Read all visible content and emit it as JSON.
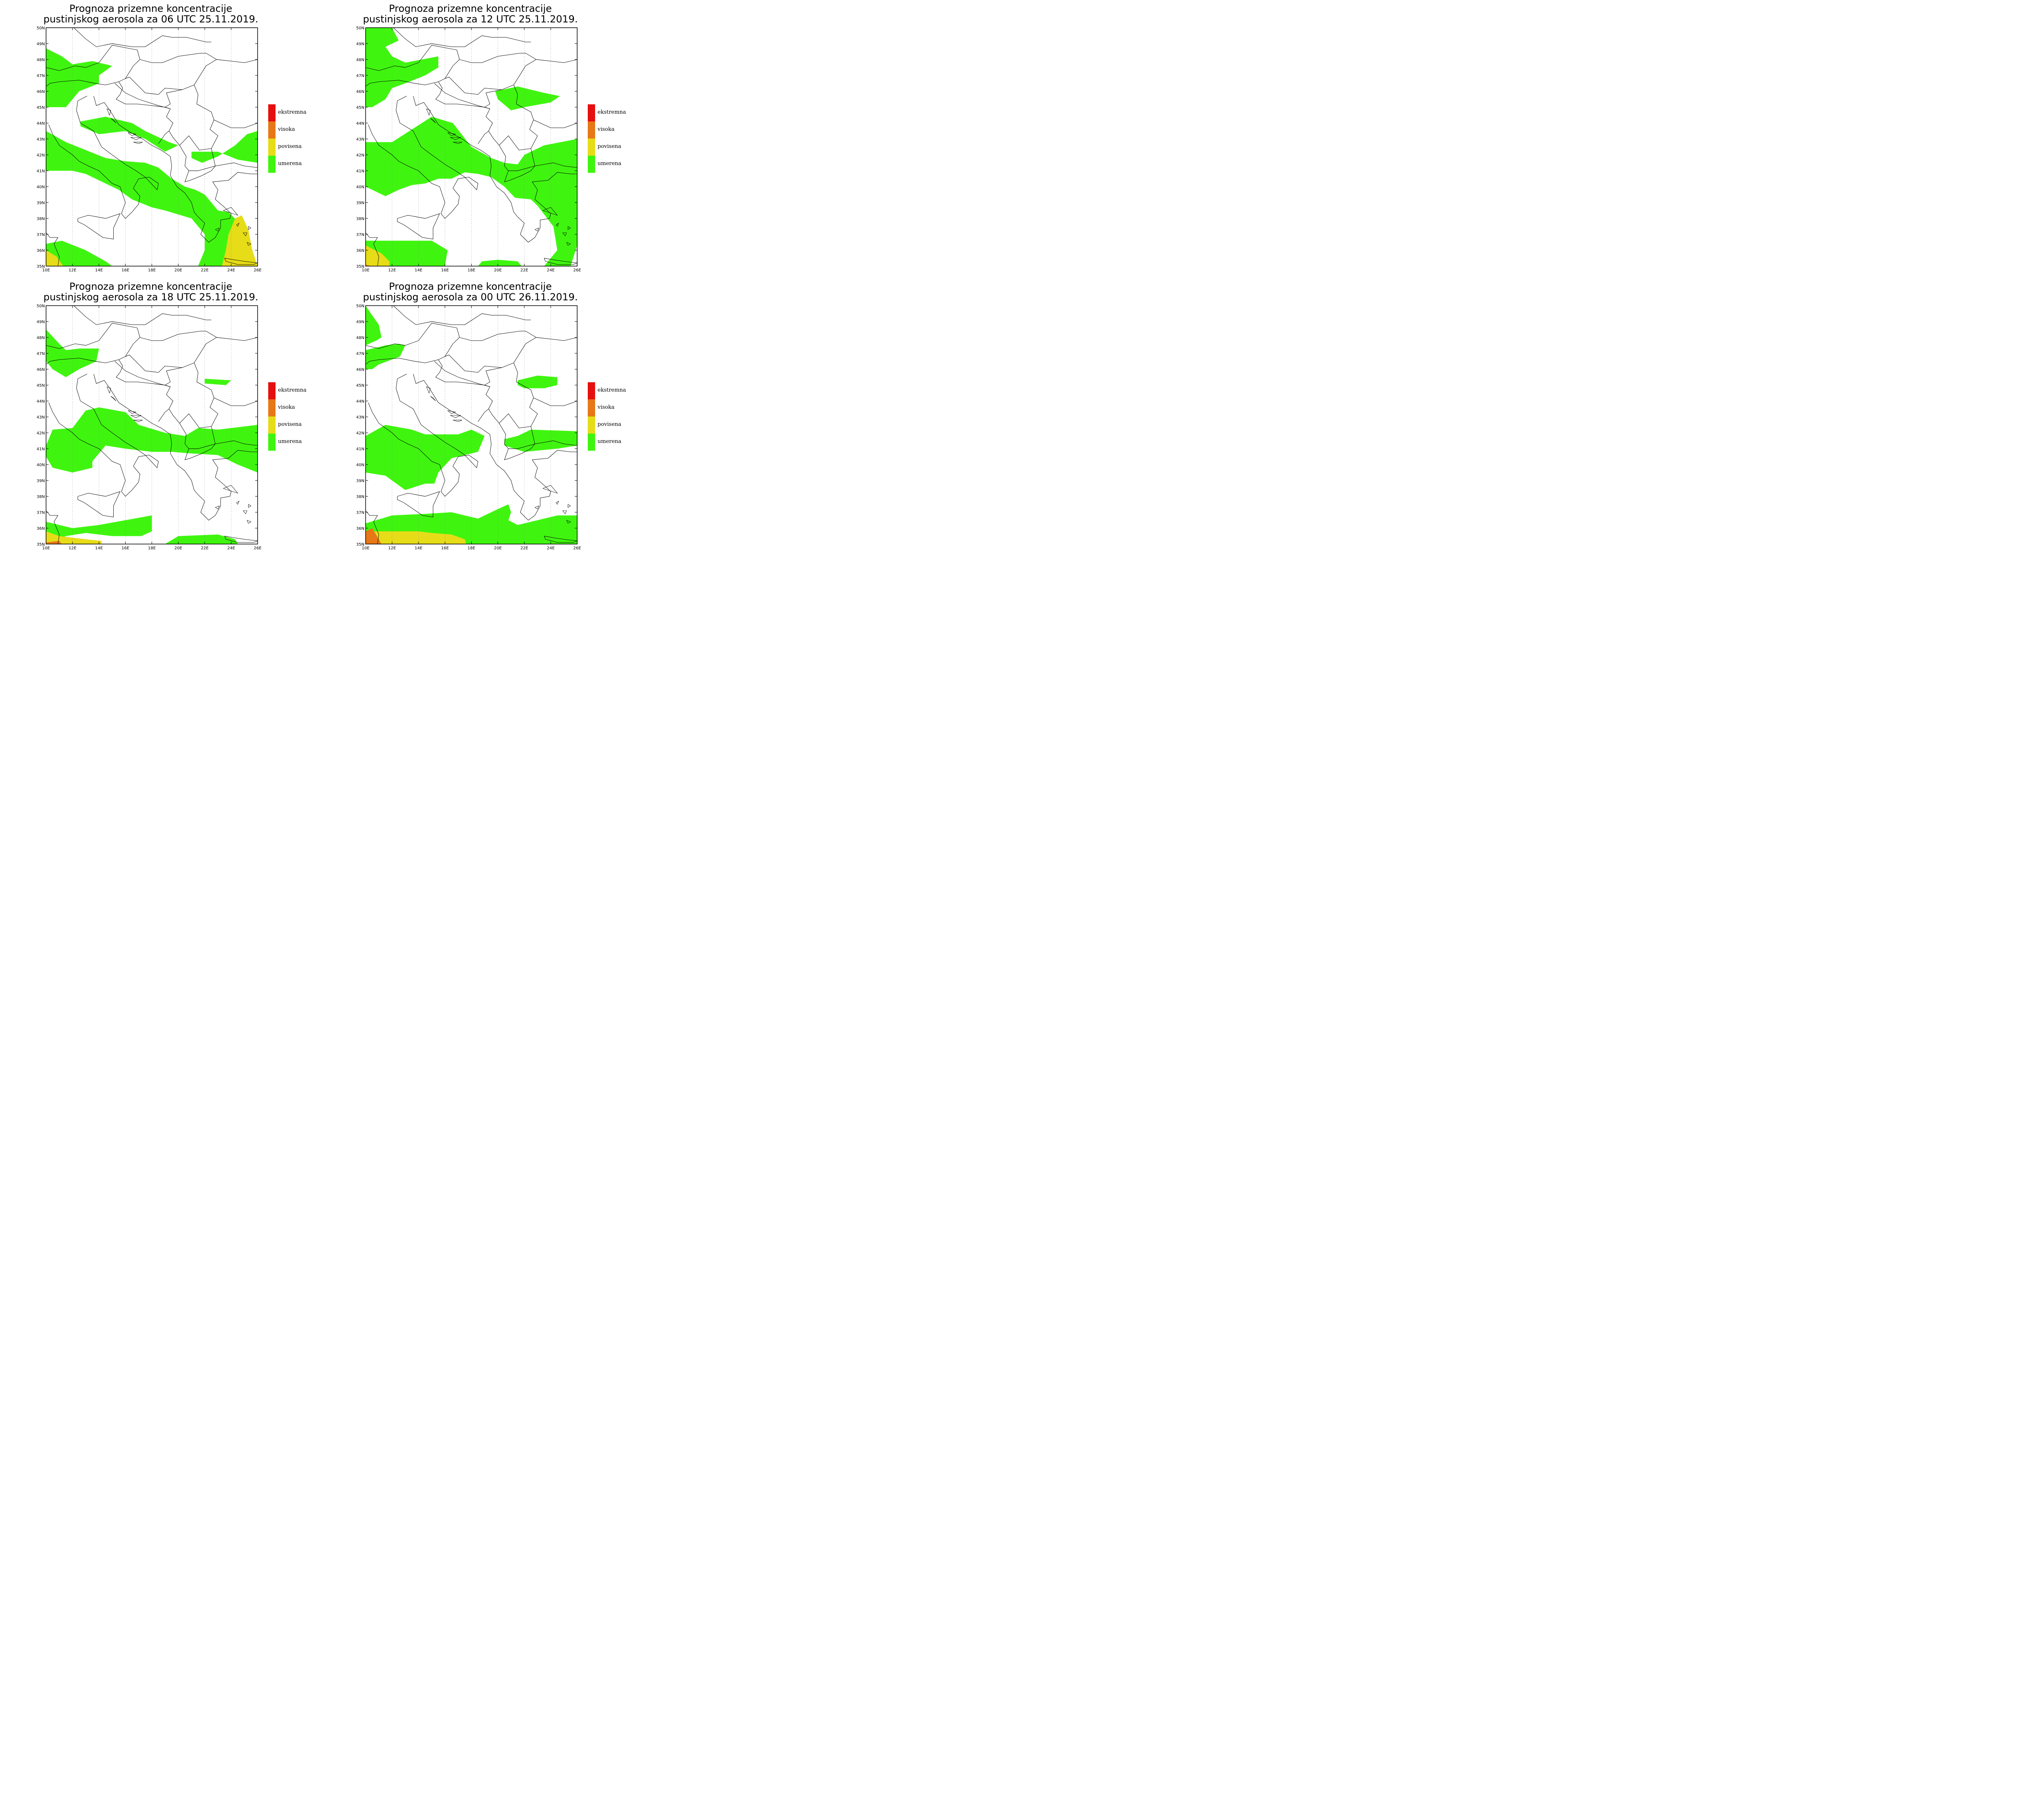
{
  "colors": {
    "ekstremna": "#e60f0f",
    "visoka": "#e67817",
    "povisena": "#e6dc17",
    "umerena": "#3ff50f",
    "coast": "#000000",
    "grid": "#777777"
  },
  "axes": {
    "lat_labels": [
      "50N",
      "49N",
      "48N",
      "47N",
      "46N",
      "45N",
      "44N",
      "43N",
      "42N",
      "41N",
      "40N",
      "39N",
      "38N",
      "37N",
      "36N",
      "35N"
    ],
    "lon_labels": [
      "10E",
      "12E",
      "14E",
      "16E",
      "18E",
      "20E",
      "22E",
      "24E",
      "26E"
    ]
  },
  "legend": [
    {
      "key": "ekstremna",
      "label": "ekstremna"
    },
    {
      "key": "visoka",
      "label": "visoka"
    },
    {
      "key": "povisena",
      "label": "povisena"
    },
    {
      "key": "umerena",
      "label": "umerena"
    }
  ],
  "panels": [
    {
      "title_line1": "Prognoza prizemne koncentracije",
      "title_line2": "pustinjskog aerosola za 06 UTC 25.11.2019."
    },
    {
      "title_line1": "Prognoza prizemne koncentracije",
      "title_line2": "pustinjskog aerosola za 12 UTC 25.11.2019."
    },
    {
      "title_line1": "Prognoza prizemne koncentracije",
      "title_line2": "pustinjskog aerosola za 18 UTC 25.11.2019."
    },
    {
      "title_line1": "Prognoza prizemne koncentracije",
      "title_line2": "pustinjskog aerosola za 00 UTC 26.11.2019."
    }
  ]
}
